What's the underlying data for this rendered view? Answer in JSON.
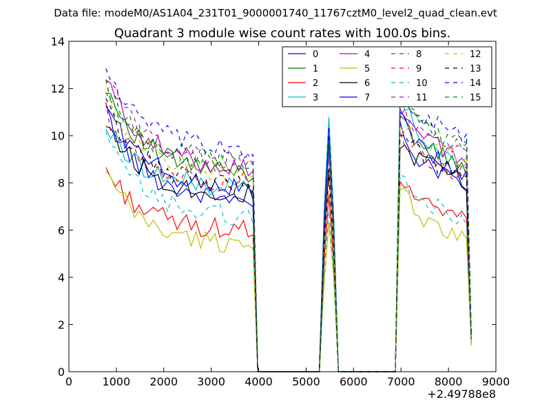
{
  "suptitle": "Data file: modeM0/AS1A04_231T01_9000001740_11767cztM0_level2_quad_clean.evt",
  "chart_data": {
    "type": "line",
    "title": "Quadrant 3 module wise count rates with 100.0s bins.",
    "xlabel": "",
    "ylabel": "",
    "x_offset_label": "+2.49788e8",
    "xlim": [
      0,
      9000
    ],
    "ylim": [
      0,
      14
    ],
    "x_ticks": [
      0,
      1000,
      2000,
      3000,
      4000,
      5000,
      6000,
      7000,
      8000,
      9000
    ],
    "y_ticks": [
      0,
      2,
      4,
      6,
      8,
      10,
      12,
      14
    ],
    "grid": false,
    "legend_position": "top-right",
    "legend_columns": 4,
    "segments": [
      {
        "x_start": 780,
        "x_end": 3880,
        "count": 32
      },
      {
        "x_start": 3980,
        "x_end": 5280,
        "count": 14,
        "value": 0
      },
      {
        "x_start": 5380,
        "x_end": 5580,
        "count": 3
      },
      {
        "x_start": 5680,
        "x_end": 6880,
        "count": 13,
        "value": 0
      },
      {
        "x_start": 6980,
        "x_end": 8480,
        "count": 16
      }
    ],
    "series": [
      {
        "name": "0",
        "color": "#0000ff",
        "dash": "solid",
        "start": 11.0,
        "mid": 7.3,
        "pre_drop": 7.0,
        "peak": 10.2,
        "g3": [
          10.2,
          8.8,
          8.3,
          7.9
        ],
        "end": 1.3
      },
      {
        "name": "1",
        "color": "#008000",
        "dash": "solid",
        "start": 12.2,
        "mid": 8.4,
        "pre_drop": 8.2,
        "peak": 9.6,
        "g3": [
          10.6,
          9.6,
          9.0,
          8.6
        ],
        "end": 1.5
      },
      {
        "name": "2",
        "color": "#ff0000",
        "dash": "solid",
        "start": 8.6,
        "mid": 6.0,
        "pre_drop": 5.8,
        "peak": 7.5,
        "g3": [
          8.1,
          7.2,
          6.6,
          6.3
        ],
        "end": 1.2
      },
      {
        "name": "3",
        "color": "#00bfbf",
        "dash": "solid",
        "start": 10.4,
        "mid": 7.8,
        "pre_drop": 7.6,
        "peak": 10.8,
        "g3": [
          11.5,
          9.7,
          9.1,
          8.8
        ],
        "end": 1.3
      },
      {
        "name": "4",
        "color": "#bf00bf",
        "dash": "solid",
        "start": 12.4,
        "mid": 8.7,
        "pre_drop": 8.5,
        "peak": 9.4,
        "g3": [
          11.2,
          9.9,
          9.3,
          9.0
        ],
        "end": 1.6
      },
      {
        "name": "5",
        "color": "#bfbf00",
        "dash": "solid",
        "start": 8.4,
        "mid": 5.4,
        "pre_drop": 5.2,
        "peak": 6.3,
        "g3": [
          7.6,
          6.5,
          5.9,
          5.7
        ],
        "end": 1.1
      },
      {
        "name": "6",
        "color": "#000000",
        "dash": "solid",
        "start": 10.7,
        "mid": 7.5,
        "pre_drop": 7.3,
        "peak": 8.6,
        "g3": [
          9.6,
          8.8,
          8.4,
          8.0
        ],
        "end": 1.4
      },
      {
        "name": "7",
        "color": "#0000ff",
        "dash": "solid",
        "start": 11.4,
        "mid": 7.8,
        "pre_drop": 7.5,
        "peak": 9.9,
        "g3": [
          10.8,
          9.3,
          8.7,
          8.4
        ],
        "end": 1.4
      },
      {
        "name": "8",
        "color": "#008000",
        "dash": "dashed",
        "start": 11.8,
        "mid": 9.0,
        "pre_drop": 8.9,
        "peak": 9.8,
        "g3": [
          11.6,
          10.4,
          9.9,
          9.6
        ],
        "end": 1.6
      },
      {
        "name": "9",
        "color": "#ff0000",
        "dash": "dashed",
        "start": 11.0,
        "mid": 8.0,
        "pre_drop": 7.8,
        "peak": 8.2,
        "g3": [
          10.1,
          9.0,
          8.6,
          8.4
        ],
        "end": 1.4
      },
      {
        "name": "10",
        "color": "#00bfbf",
        "dash": "dashed",
        "start": 9.9,
        "mid": 6.6,
        "pre_drop": 6.3,
        "peak": 6.8,
        "g3": [
          8.4,
          7.2,
          6.8,
          6.4
        ],
        "end": 1.2
      },
      {
        "name": "11",
        "color": "#bf00bf",
        "dash": "dashed",
        "start": 12.6,
        "mid": 8.9,
        "pre_drop": 8.7,
        "peak": 9.2,
        "g3": [
          11.0,
          10.0,
          9.6,
          9.2
        ],
        "end": 1.6
      },
      {
        "name": "12",
        "color": "#bfbf00",
        "dash": "dashed",
        "start": 11.9,
        "mid": 8.4,
        "pre_drop": 8.2,
        "peak": 8.5,
        "g3": [
          10.5,
          9.6,
          9.2,
          9.0
        ],
        "end": 1.5
      },
      {
        "name": "13",
        "color": "#000000",
        "dash": "dashed",
        "start": 11.3,
        "mid": 7.9,
        "pre_drop": 7.6,
        "peak": 8.4,
        "g3": [
          10.0,
          9.0,
          8.6,
          8.2
        ],
        "end": 1.5
      },
      {
        "name": "14",
        "color": "#0000ff",
        "dash": "dashed",
        "start": 12.9,
        "mid": 9.4,
        "pre_drop": 9.2,
        "peak": 10.4,
        "g3": [
          11.9,
          10.7,
          10.3,
          9.9
        ],
        "end": 1.7
      },
      {
        "name": "15",
        "color": "#008000",
        "dash": "dashed",
        "start": 12.0,
        "mid": 8.8,
        "pre_drop": 8.6,
        "peak": 9.7,
        "g3": [
          11.7,
          10.3,
          9.8,
          9.4
        ],
        "end": 1.6
      }
    ]
  }
}
